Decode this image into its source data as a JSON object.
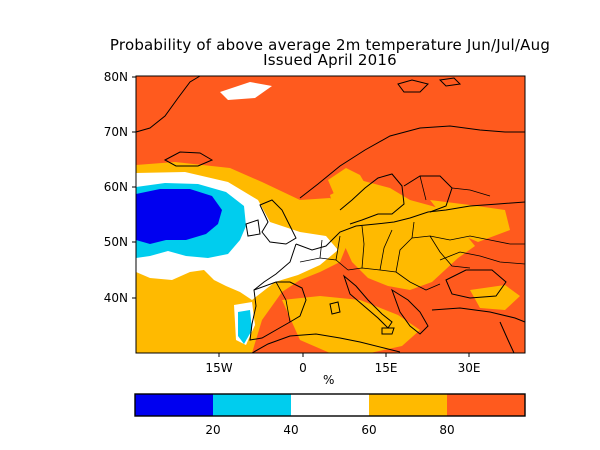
{
  "title": {
    "line1": "Probability of above average 2m temperature Jun/Jul/Aug",
    "line2": "Issued April 2016"
  },
  "map": {
    "lat_labels": [
      "80N",
      "70N",
      "60N",
      "50N",
      "40N"
    ],
    "lon_labels": [
      "15W",
      "0",
      "15E",
      "30E"
    ],
    "unit": "%"
  },
  "colorbar": {
    "bins": [
      {
        "range": [
          0,
          20
        ],
        "color": "#0000f0"
      },
      {
        "range": [
          20,
          40
        ],
        "color": "#00cdee"
      },
      {
        "range": [
          40,
          60
        ],
        "color": "#ffffff"
      },
      {
        "range": [
          60,
          80
        ],
        "color": "#ffba00"
      },
      {
        "range": [
          80,
          100
        ],
        "color": "#ff5a1e"
      }
    ],
    "tick_labels": [
      "20",
      "40",
      "60",
      "80"
    ]
  },
  "colors": {
    "very_high": "#ff5a1e",
    "high": "#ffba00",
    "neutral": "#ffffff",
    "low": "#00cdee",
    "very_low": "#0000f0"
  }
}
